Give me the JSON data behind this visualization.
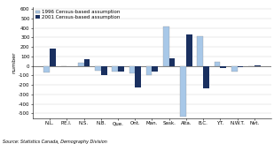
{
  "provinces": [
    "N.L.",
    "P.E.I.",
    "N.S.",
    "N.B.",
    "Que.",
    "Ont.",
    "Man.",
    "Sask.",
    "Alta.",
    "B.C.",
    "Y.T.",
    "N.W.T.",
    "Nvt."
  ],
  "values_1996": [
    -70,
    0,
    30,
    -50,
    -55,
    -75,
    -100,
    420,
    -530,
    310,
    40,
    -55,
    0
  ],
  "values_2001": [
    185,
    -5,
    70,
    -100,
    -55,
    -230,
    -60,
    80,
    330,
    -240,
    -20,
    -10,
    5
  ],
  "color_1996": "#a8c8e8",
  "color_2001": "#1a3060",
  "ylim": [
    -550,
    620
  ],
  "yticks": [
    -500,
    -400,
    -300,
    -200,
    -100,
    0,
    100,
    200,
    300,
    400,
    500,
    600
  ],
  "ytick_labels": [
    "-500",
    "-400",
    "-300",
    "-200",
    "-100",
    "0",
    "100",
    "200",
    "300",
    "400",
    "500",
    "600"
  ],
  "ylabel": "number",
  "legend_1996": "1996 Census-based assumption",
  "legend_2001": "2001 Census-based assumption",
  "source": "Source: Statistics Canada, Demography Division",
  "axis_fontsize": 4.5,
  "tick_fontsize": 4.0,
  "legend_fontsize": 4.0,
  "source_fontsize": 3.5
}
